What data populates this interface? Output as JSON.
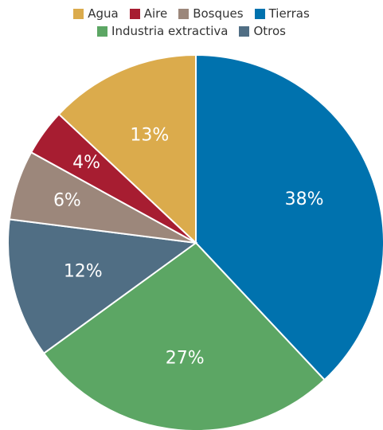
{
  "chart_data": {
    "type": "pie",
    "categories": [
      "Tierras",
      "Industria extractiva",
      "Otros",
      "Bosques",
      "Aire",
      "Agua"
    ],
    "values": [
      38,
      27,
      12,
      6,
      4,
      13
    ],
    "value_labels": [
      "38%",
      "27%",
      "12%",
      "6%",
      "4%",
      "13%"
    ],
    "colors": [
      "#0072ae",
      "#5ca664",
      "#506e84",
      "#9c877b",
      "#a71d31",
      "#dbab4c"
    ],
    "legend": "top"
  }
}
